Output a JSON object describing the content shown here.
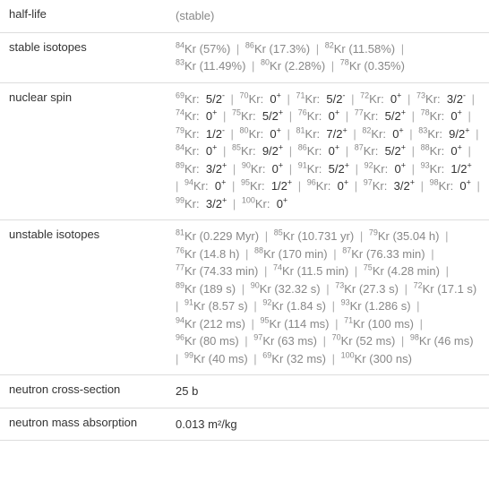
{
  "rows": {
    "half_life": {
      "label": "half-life",
      "value": "(stable)"
    },
    "stable": {
      "label": "stable isotopes",
      "items": [
        {
          "mass": "84",
          "pct": "(57%)"
        },
        {
          "mass": "86",
          "pct": "(17.3%)"
        },
        {
          "mass": "82",
          "pct": "(11.58%)"
        },
        {
          "mass": "83",
          "pct": "(11.49%)"
        },
        {
          "mass": "80",
          "pct": "(2.28%)"
        },
        {
          "mass": "78",
          "pct": "(0.35%)"
        }
      ]
    },
    "spin": {
      "label": "nuclear spin",
      "items": [
        {
          "mass": "69",
          "spin": "5/2",
          "sign": "-"
        },
        {
          "mass": "70",
          "spin": "0",
          "sign": "+"
        },
        {
          "mass": "71",
          "spin": "5/2",
          "sign": "-"
        },
        {
          "mass": "72",
          "spin": "0",
          "sign": "+"
        },
        {
          "mass": "73",
          "spin": "3/2",
          "sign": "-"
        },
        {
          "mass": "74",
          "spin": "0",
          "sign": "+"
        },
        {
          "mass": "75",
          "spin": "5/2",
          "sign": "+"
        },
        {
          "mass": "76",
          "spin": "0",
          "sign": "+"
        },
        {
          "mass": "77",
          "spin": "5/2",
          "sign": "+"
        },
        {
          "mass": "78",
          "spin": "0",
          "sign": "+"
        },
        {
          "mass": "79",
          "spin": "1/2",
          "sign": "-"
        },
        {
          "mass": "80",
          "spin": "0",
          "sign": "+"
        },
        {
          "mass": "81",
          "spin": "7/2",
          "sign": "+"
        },
        {
          "mass": "82",
          "spin": "0",
          "sign": "+"
        },
        {
          "mass": "83",
          "spin": "9/2",
          "sign": "+"
        },
        {
          "mass": "84",
          "spin": "0",
          "sign": "+"
        },
        {
          "mass": "85",
          "spin": "9/2",
          "sign": "+"
        },
        {
          "mass": "86",
          "spin": "0",
          "sign": "+"
        },
        {
          "mass": "87",
          "spin": "5/2",
          "sign": "+"
        },
        {
          "mass": "88",
          "spin": "0",
          "sign": "+"
        },
        {
          "mass": "89",
          "spin": "3/2",
          "sign": "+"
        },
        {
          "mass": "90",
          "spin": "0",
          "sign": "+"
        },
        {
          "mass": "91",
          "spin": "5/2",
          "sign": "+"
        },
        {
          "mass": "92",
          "spin": "0",
          "sign": "+"
        },
        {
          "mass": "93",
          "spin": "1/2",
          "sign": "+"
        },
        {
          "mass": "94",
          "spin": "0",
          "sign": "+"
        },
        {
          "mass": "95",
          "spin": "1/2",
          "sign": "+"
        },
        {
          "mass": "96",
          "spin": "0",
          "sign": "+"
        },
        {
          "mass": "97",
          "spin": "3/2",
          "sign": "+"
        },
        {
          "mass": "98",
          "spin": "0",
          "sign": "+"
        },
        {
          "mass": "99",
          "spin": "3/2",
          "sign": "+"
        },
        {
          "mass": "100",
          "spin": "0",
          "sign": "+"
        }
      ]
    },
    "unstable": {
      "label": "unstable isotopes",
      "items": [
        {
          "mass": "81",
          "t": "(0.229 Myr)"
        },
        {
          "mass": "85",
          "t": "(10.731 yr)"
        },
        {
          "mass": "79",
          "t": "(35.04 h)"
        },
        {
          "mass": "76",
          "t": "(14.8 h)"
        },
        {
          "mass": "88",
          "t": "(170 min)"
        },
        {
          "mass": "87",
          "t": "(76.33 min)"
        },
        {
          "mass": "77",
          "t": "(74.33 min)"
        },
        {
          "mass": "74",
          "t": "(11.5 min)"
        },
        {
          "mass": "75",
          "t": "(4.28 min)"
        },
        {
          "mass": "89",
          "t": "(189 s)"
        },
        {
          "mass": "90",
          "t": "(32.32 s)"
        },
        {
          "mass": "73",
          "t": "(27.3 s)"
        },
        {
          "mass": "72",
          "t": "(17.1 s)"
        },
        {
          "mass": "91",
          "t": "(8.57 s)"
        },
        {
          "mass": "92",
          "t": "(1.84 s)"
        },
        {
          "mass": "93",
          "t": "(1.286 s)"
        },
        {
          "mass": "94",
          "t": "(212 ms)"
        },
        {
          "mass": "95",
          "t": "(114 ms)"
        },
        {
          "mass": "71",
          "t": "(100 ms)"
        },
        {
          "mass": "96",
          "t": "(80 ms)"
        },
        {
          "mass": "97",
          "t": "(63 ms)"
        },
        {
          "mass": "70",
          "t": "(52 ms)"
        },
        {
          "mass": "98",
          "t": "(46 ms)"
        },
        {
          "mass": "99",
          "t": "(40 ms)"
        },
        {
          "mass": "69",
          "t": "(32 ms)"
        },
        {
          "mass": "100",
          "t": "(300 ns)"
        }
      ]
    },
    "cross": {
      "label": "neutron cross-section",
      "value": "25 b"
    },
    "absorption": {
      "label": "neutron mass absorption",
      "value": "0.013 m²/kg"
    }
  },
  "element": "Kr",
  "sep": " | "
}
